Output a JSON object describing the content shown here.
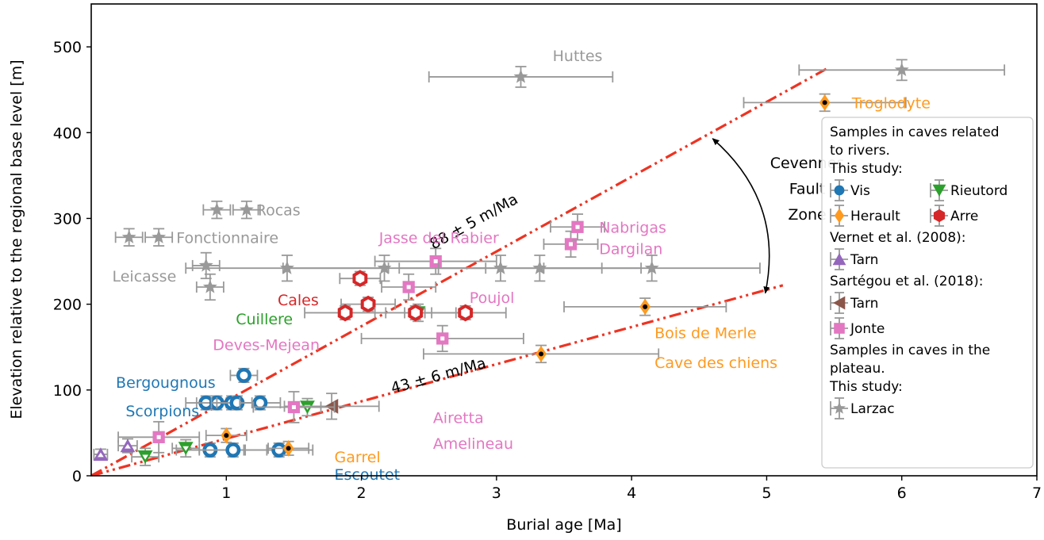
{
  "chart_data": {
    "type": "scatter",
    "xlabel": "Burial age [Ma]",
    "ylabel": "Elevation relative to the regional base level [m]",
    "xlim": [
      0,
      7
    ],
    "ylim": [
      0,
      550
    ],
    "xticks": [
      1,
      2,
      3,
      4,
      5,
      6,
      7
    ],
    "yticks": [
      0,
      100,
      200,
      300,
      400,
      500
    ],
    "grid": false,
    "legend_position": "right",
    "colors": {
      "vis": "#1f77b4",
      "herault": "#ff9a1f",
      "rieutord": "#2ca02c",
      "arre": "#d62728",
      "tarn_vernet": "#9467bd",
      "tarn_sartegou": "#8c564b",
      "jonte": "#e377c2",
      "larzac": "#999999",
      "errorbar": "#999999",
      "trend": "#ee3322"
    },
    "series": [
      {
        "key": "vis",
        "marker": "circle",
        "points": [
          {
            "x": 0.85,
            "y": 85,
            "xerr": 0.15,
            "yerr": 8
          },
          {
            "x": 0.93,
            "y": 85,
            "xerr": 0.15,
            "yerr": 8
          },
          {
            "x": 1.04,
            "y": 85,
            "xerr": 0.15,
            "yerr": 8
          },
          {
            "x": 1.08,
            "y": 85,
            "xerr": 0.15,
            "yerr": 8
          },
          {
            "x": 1.25,
            "y": 85,
            "xerr": 0.15,
            "yerr": 8
          },
          {
            "x": 1.13,
            "y": 117,
            "xerr": 0.1,
            "yerr": 8
          },
          {
            "x": 0.88,
            "y": 30,
            "xerr": 0.25,
            "yerr": 8
          },
          {
            "x": 1.05,
            "y": 30,
            "xerr": 0.25,
            "yerr": 8
          },
          {
            "x": 1.39,
            "y": 30,
            "xerr": 0.25,
            "yerr": 8
          }
        ]
      },
      {
        "key": "herault",
        "marker": "diamond",
        "points": [
          {
            "x": 1.0,
            "y": 47,
            "xerr": 0.15,
            "yerr": 8
          },
          {
            "x": 1.46,
            "y": 32,
            "xerr": 0.15,
            "yerr": 8
          },
          {
            "x": 3.33,
            "y": 142,
            "xerr": 0.87,
            "yerr": 10
          },
          {
            "x": 4.1,
            "y": 197,
            "xerr": 0.6,
            "yerr": 10
          },
          {
            "x": 5.43,
            "y": 435,
            "xerr": 0.6,
            "yerr": 10
          }
        ]
      },
      {
        "key": "rieutord",
        "marker": "triangle-down",
        "points": [
          {
            "x": 0.4,
            "y": 22,
            "xerr": 0.1,
            "yerr": 10
          },
          {
            "x": 0.7,
            "y": 32,
            "xerr": 0.1,
            "yerr": 10
          },
          {
            "x": 1.6,
            "y": 80,
            "xerr": 0.1,
            "yerr": 10
          },
          {
            "x": 2.42,
            "y": 190,
            "xerr": 0.1,
            "yerr": 10
          }
        ]
      },
      {
        "key": "arre",
        "marker": "hexagon",
        "points": [
          {
            "x": 1.99,
            "y": 230,
            "xerr": 0.15,
            "yerr": 8
          },
          {
            "x": 2.05,
            "y": 200,
            "xerr": 0.2,
            "yerr": 8
          },
          {
            "x": 1.88,
            "y": 190,
            "xerr": 0.3,
            "yerr": 8
          },
          {
            "x": 2.4,
            "y": 190,
            "xerr": 0.3,
            "yerr": 8
          },
          {
            "x": 2.77,
            "y": 190,
            "xerr": 0.3,
            "yerr": 8
          }
        ]
      },
      {
        "key": "tarn_vernet",
        "marker": "triangle-up",
        "points": [
          {
            "x": 0.07,
            "y": 25,
            "xerr": 0.05,
            "yerr": 6
          },
          {
            "x": 0.27,
            "y": 35,
            "xerr": 0.07,
            "yerr": 8
          }
        ]
      },
      {
        "key": "tarn_sartegou",
        "marker": "triangle-left",
        "points": [
          {
            "x": 1.78,
            "y": 81,
            "xerr": 0.35,
            "yerr": 15
          }
        ]
      },
      {
        "key": "jonte",
        "marker": "square",
        "points": [
          {
            "x": 0.5,
            "y": 45,
            "xerr": 0.3,
            "yerr": 18
          },
          {
            "x": 1.5,
            "y": 80,
            "xerr": 0.3,
            "yerr": 18
          },
          {
            "x": 2.6,
            "y": 160,
            "xerr": 0.6,
            "yerr": 15
          },
          {
            "x": 2.35,
            "y": 220,
            "xerr": 0.2,
            "yerr": 15
          },
          {
            "x": 2.55,
            "y": 250,
            "xerr": 0.45,
            "yerr": 15
          },
          {
            "x": 3.55,
            "y": 270,
            "xerr": 0.2,
            "yerr": 15
          },
          {
            "x": 3.6,
            "y": 290,
            "xerr": 0.2,
            "yerr": 15
          }
        ]
      },
      {
        "key": "larzac",
        "marker": "star",
        "points": [
          {
            "x": 0.28,
            "y": 278,
            "xerr": 0.1,
            "yerr": 10
          },
          {
            "x": 0.5,
            "y": 278,
            "xerr": 0.1,
            "yerr": 10
          },
          {
            "x": 0.93,
            "y": 310,
            "xerr": 0.1,
            "yerr": 10
          },
          {
            "x": 1.15,
            "y": 310,
            "xerr": 0.1,
            "yerr": 10
          },
          {
            "x": 0.85,
            "y": 245,
            "xerr": 0.1,
            "yerr": 15
          },
          {
            "x": 0.88,
            "y": 220,
            "xerr": 0.1,
            "yerr": 15
          },
          {
            "x": 1.45,
            "y": 242,
            "xerr": 0.75,
            "yerr": 15
          },
          {
            "x": 2.17,
            "y": 242,
            "xerr": 0.75,
            "yerr": 15
          },
          {
            "x": 3.03,
            "y": 242,
            "xerr": 0.75,
            "yerr": 15
          },
          {
            "x": 3.32,
            "y": 242,
            "xerr": 0.75,
            "yerr": 15
          },
          {
            "x": 4.15,
            "y": 242,
            "xerr": 0.8,
            "yerr": 15
          },
          {
            "x": 3.18,
            "y": 465,
            "xerr": 0.68,
            "yerr": 12
          },
          {
            "x": 6.0,
            "y": 473,
            "xerr": 0.76,
            "yerr": 12
          }
        ]
      }
    ],
    "trendlines": [
      {
        "label": "88 ± 5 m/Ma",
        "x": [
          0,
          5.45
        ],
        "y": [
          0,
          475
        ]
      },
      {
        "label": "43 ± 6 m/Ma",
        "x": [
          0,
          5.12
        ],
        "y": [
          0,
          222
        ]
      }
    ],
    "site_labels": [
      {
        "text": "Huttes",
        "x": 3.6,
        "y": 490,
        "color": "larzac",
        "anchor": "middle"
      },
      {
        "text": "Troglodyte",
        "x": 5.63,
        "y": 435,
        "color": "herault",
        "anchor": "start"
      },
      {
        "text": "Rocas",
        "x": 1.22,
        "y": 310,
        "color": "larzac",
        "anchor": "start"
      },
      {
        "text": "Fonctionnaire",
        "x": 0.63,
        "y": 278,
        "color": "larzac",
        "anchor": "start"
      },
      {
        "text": "Leicasse",
        "x": 0.63,
        "y": 233,
        "color": "larzac",
        "anchor": "end"
      },
      {
        "text": "Jasse del Rabier",
        "x": 2.13,
        "y": 278,
        "color": "jonte",
        "anchor": "start"
      },
      {
        "text": "Nabrigas",
        "x": 3.76,
        "y": 290,
        "color": "jonte",
        "anchor": "start"
      },
      {
        "text": "Dargilan",
        "x": 3.76,
        "y": 265,
        "color": "jonte",
        "anchor": "start"
      },
      {
        "text": "Poujol",
        "x": 2.8,
        "y": 208,
        "color": "jonte",
        "anchor": "start"
      },
      {
        "text": "Cales",
        "x": 1.38,
        "y": 205,
        "color": "arre",
        "anchor": "start"
      },
      {
        "text": "Cuillere",
        "x": 1.07,
        "y": 183,
        "color": "rieutord",
        "anchor": "start"
      },
      {
        "text": "Deves-Mejean",
        "x": 0.9,
        "y": 153,
        "color": "jonte",
        "anchor": "start"
      },
      {
        "text": "Bois de Merle",
        "x": 4.17,
        "y": 167,
        "color": "herault",
        "anchor": "start"
      },
      {
        "text": "Cave des chiens",
        "x": 4.17,
        "y": 132,
        "color": "herault",
        "anchor": "start"
      },
      {
        "text": "Bergougnous",
        "x": 0.92,
        "y": 109,
        "color": "vis",
        "anchor": "end"
      },
      {
        "text": "Scorpions",
        "x": 0.8,
        "y": 76,
        "color": "vis",
        "anchor": "end"
      },
      {
        "text": "Airetta",
        "x": 2.53,
        "y": 68,
        "color": "jonte",
        "anchor": "start"
      },
      {
        "text": "Amelineau",
        "x": 2.53,
        "y": 38,
        "color": "jonte",
        "anchor": "start"
      },
      {
        "text": "Garrel",
        "x": 1.8,
        "y": 22,
        "color": "herault",
        "anchor": "start"
      },
      {
        "text": "Escoutet",
        "x": 1.8,
        "y": 2,
        "color": "vis",
        "anchor": "start"
      }
    ],
    "annotations": [
      {
        "text": "Cevennes",
        "x": 5.3,
        "y": 365
      },
      {
        "text": "Fault",
        "x": 5.3,
        "y": 335
      },
      {
        "text": "Zone",
        "x": 5.3,
        "y": 305
      }
    ],
    "legend": {
      "lines": [
        {
          "type": "text",
          "text": "Samples in caves related"
        },
        {
          "type": "text",
          "text": "to rivers."
        },
        {
          "type": "text",
          "text": "This study:"
        },
        {
          "type": "pair",
          "items": [
            {
              "key": "vis",
              "text": "Vis"
            },
            {
              "key": "rieutord",
              "text": "Rieutord"
            }
          ]
        },
        {
          "type": "pair",
          "items": [
            {
              "key": "herault",
              "text": "Herault"
            },
            {
              "key": "arre",
              "text": "Arre"
            }
          ]
        },
        {
          "type": "text",
          "text": "Vernet et al. (2008):"
        },
        {
          "type": "single",
          "key": "tarn_vernet",
          "text": "Tarn"
        },
        {
          "type": "text",
          "text": "Sartégou et al. (2018):"
        },
        {
          "type": "single",
          "key": "tarn_sartegou",
          "text": "Tarn"
        },
        {
          "type": "single",
          "key": "jonte",
          "text": "Jonte"
        },
        {
          "type": "text",
          "text": "Samples in caves in the"
        },
        {
          "type": "text",
          "text": "plateau."
        },
        {
          "type": "text",
          "text": "This study:"
        },
        {
          "type": "single",
          "key": "larzac",
          "text": "Larzac"
        }
      ]
    }
  }
}
